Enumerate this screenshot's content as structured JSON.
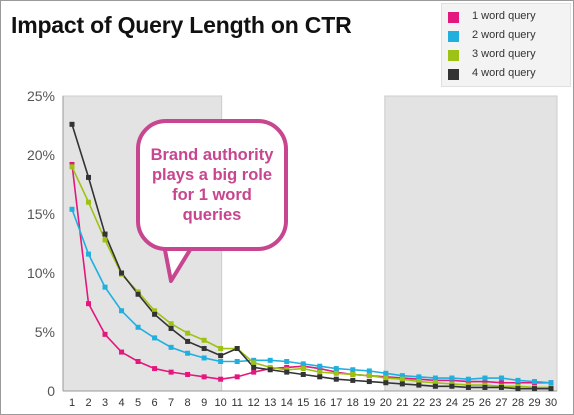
{
  "chart_data": {
    "type": "line",
    "title": "Impact of Query Length on CTR",
    "x": [
      1,
      2,
      3,
      4,
      5,
      6,
      7,
      8,
      9,
      10,
      11,
      12,
      13,
      14,
      15,
      16,
      17,
      18,
      19,
      20,
      21,
      22,
      23,
      24,
      25,
      26,
      27,
      28,
      29,
      30
    ],
    "x_tick_labels": [
      "1",
      "2",
      "3",
      "4",
      "5",
      "6",
      "7",
      "8",
      "9",
      "10",
      "11",
      "12",
      "13",
      "14",
      "15",
      "16",
      "17",
      "18",
      "19",
      "20",
      "21",
      "22",
      "23",
      "24",
      "25",
      "26",
      "27",
      "28",
      "29",
      "30"
    ],
    "y_tick_labels": [
      "0",
      "5%",
      "10%",
      "15%",
      "20%",
      "25%"
    ],
    "ylim": [
      0,
      25
    ],
    "xlim": [
      1,
      30
    ],
    "grid": false,
    "legend_position": "top-right",
    "shaded_x_ranges": [
      [
        1,
        10
      ],
      [
        20,
        30
      ]
    ],
    "annotation": "Brand authority plays a big role for 1 word queries",
    "series": [
      {
        "name": "1 word query",
        "color": "#e3177e",
        "values": [
          19.2,
          7.4,
          4.8,
          3.3,
          2.5,
          1.9,
          1.6,
          1.4,
          1.2,
          1.0,
          1.2,
          1.6,
          1.9,
          2.0,
          2.1,
          1.9,
          1.6,
          1.4,
          1.3,
          1.2,
          1.1,
          1.0,
          0.9,
          0.9,
          0.8,
          0.8,
          0.7,
          0.7,
          0.7,
          0.7
        ]
      },
      {
        "name": "2 word query",
        "color": "#1fb0e0",
        "values": [
          15.4,
          11.6,
          8.8,
          6.8,
          5.4,
          4.5,
          3.7,
          3.2,
          2.8,
          2.5,
          2.5,
          2.6,
          2.6,
          2.5,
          2.3,
          2.1,
          1.9,
          1.8,
          1.7,
          1.5,
          1.3,
          1.2,
          1.1,
          1.1,
          1.0,
          1.1,
          1.1,
          0.9,
          0.8,
          0.7
        ]
      },
      {
        "name": "3 word query",
        "color": "#9ec214",
        "values": [
          19.0,
          16.0,
          12.8,
          9.9,
          8.4,
          6.8,
          5.7,
          4.9,
          4.3,
          3.6,
          3.6,
          2.4,
          2.0,
          1.8,
          1.9,
          1.6,
          1.5,
          1.4,
          1.3,
          1.1,
          1.0,
          0.8,
          0.7,
          0.6,
          0.5,
          0.5,
          0.4,
          0.4,
          0.3,
          0.3
        ]
      },
      {
        "name": "4 word query",
        "color": "#333333",
        "values": [
          22.6,
          18.1,
          13.3,
          10.0,
          8.2,
          6.5,
          5.3,
          4.2,
          3.6,
          3.0,
          3.6,
          2.0,
          1.8,
          1.6,
          1.4,
          1.2,
          1.0,
          0.9,
          0.8,
          0.7,
          0.6,
          0.5,
          0.4,
          0.4,
          0.3,
          0.3,
          0.3,
          0.2,
          0.2,
          0.2
        ]
      }
    ]
  }
}
